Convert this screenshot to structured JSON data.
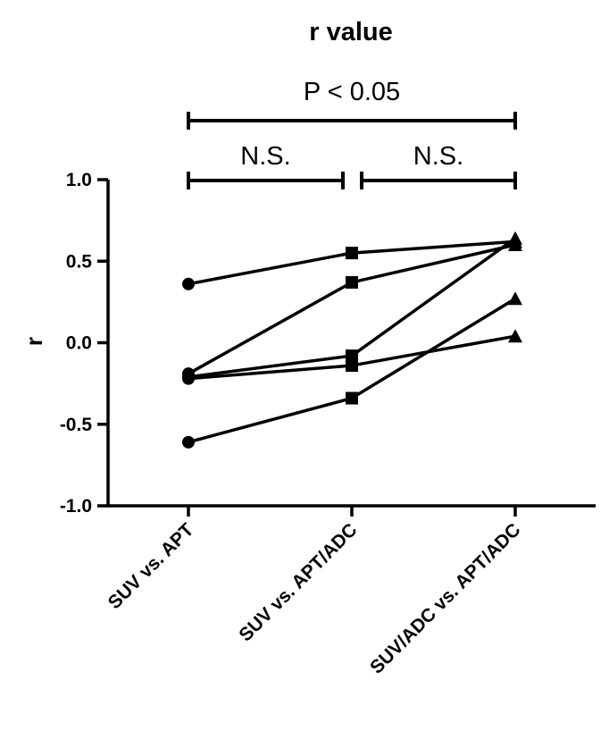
{
  "chart_data": {
    "type": "line",
    "title": "r value",
    "ylabel": "r",
    "xlabel": "",
    "ylim": [
      -1.0,
      1.0
    ],
    "yticks": [
      1.0,
      0.5,
      0.0,
      -0.5,
      -1.0
    ],
    "ytick_labels": [
      "1.0",
      "0.5",
      "0.0",
      "-0.5",
      "-1.0"
    ],
    "categories": [
      "SUV vs. APT",
      "SUV vs. APT/ADC",
      "SUV/ADC vs. APT/ADC"
    ],
    "markers": [
      "circle",
      "square",
      "triangle"
    ],
    "color": "#000000",
    "grid": false,
    "legend": "none",
    "series": [
      {
        "values": [
          0.36,
          0.55,
          0.62
        ]
      },
      {
        "values": [
          -0.19,
          0.37,
          0.6
        ]
      },
      {
        "values": [
          -0.21,
          -0.08,
          0.64
        ]
      },
      {
        "values": [
          -0.22,
          -0.14,
          0.04
        ]
      },
      {
        "values": [
          -0.61,
          -0.34,
          0.27
        ]
      }
    ],
    "significance": [
      {
        "label": "P < 0.05",
        "from": 0,
        "to": 2
      },
      {
        "label": "N.S.",
        "from": 0,
        "to": 1
      },
      {
        "label": "N.S.",
        "from": 1,
        "to": 2
      }
    ]
  }
}
